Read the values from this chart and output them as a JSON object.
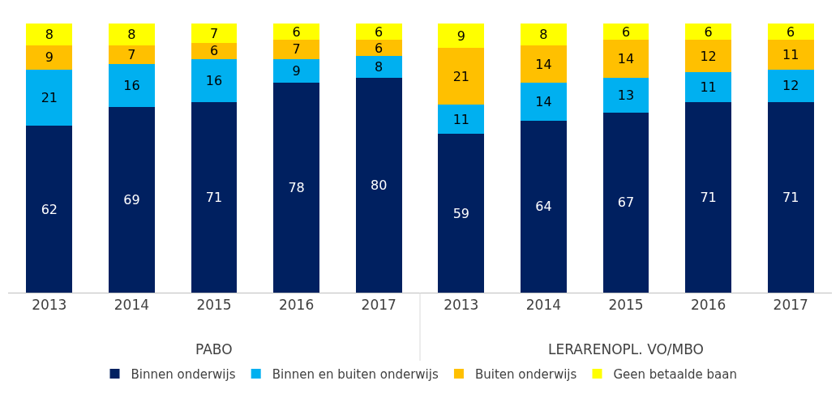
{
  "chart_data": {
    "type": "bar",
    "stacked": true,
    "data_labels": true,
    "legend": "bottom",
    "categories": [
      "2013",
      "2014",
      "2015",
      "2016",
      "2017",
      "2013",
      "2014",
      "2015",
      "2016",
      "2017"
    ],
    "annotations": [
      "PABO",
      "LERARENOPL. VO/MBO"
    ],
    "series": [
      {
        "name": "Binnen onderwijs",
        "color": "#002060",
        "values": [
          62,
          69,
          71,
          78,
          80,
          59,
          64,
          67,
          71,
          71
        ]
      },
      {
        "name": "Binnen en buiten onderwijs",
        "color": "#00b0f0",
        "values": [
          21,
          16,
          16,
          9,
          8,
          11,
          14,
          13,
          11,
          12
        ]
      },
      {
        "name": "Buiten onderwijs",
        "color": "#ffc000",
        "values": [
          9,
          7,
          6,
          7,
          6,
          21,
          14,
          14,
          12,
          11
        ]
      },
      {
        "name": "Geen betaalde baan",
        "color": "#ffff00",
        "values": [
          8,
          8,
          7,
          6,
          6,
          9,
          8,
          6,
          6,
          6
        ]
      }
    ]
  }
}
